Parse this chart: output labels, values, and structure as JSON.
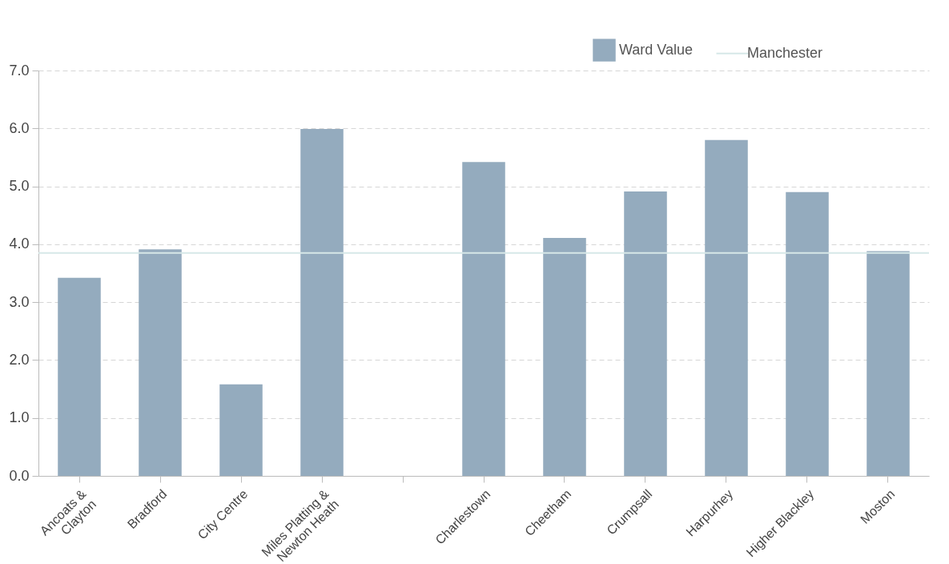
{
  "chart_data": {
    "type": "bar",
    "categories": [
      "Ancoats & Clayton",
      "Bradford",
      "City Centre",
      "Miles Platting & Newton Heath",
      null,
      "Charlestown",
      "Cheetham",
      "Crumpsall",
      "Harpurhey",
      "Higher Blackley",
      "Moston"
    ],
    "series": [
      {
        "name": "Ward Value",
        "color": "#94abbe",
        "values": [
          3.42,
          3.91,
          1.58,
          5.99,
          null,
          5.42,
          4.11,
          4.91,
          5.8,
          4.9,
          3.88
        ]
      }
    ],
    "ylim": [
      0,
      7
    ],
    "yticks": [
      {
        "value": 0,
        "label": "0.0"
      },
      {
        "value": 1,
        "label": "1.0"
      },
      {
        "value": 2,
        "label": "2.0"
      },
      {
        "value": 3,
        "label": "3.0"
      },
      {
        "value": 4,
        "label": "4.0"
      },
      {
        "value": 5,
        "label": "5.0"
      },
      {
        "value": 6,
        "label": "6.0"
      },
      {
        "value": 7,
        "label": "7.0"
      }
    ],
    "ref_lines": [
      {
        "axis": "y",
        "value": 3.85,
        "label": "Manchester",
        "color": "#d6e8e8"
      }
    ],
    "grid": "y",
    "legend": "top right"
  }
}
